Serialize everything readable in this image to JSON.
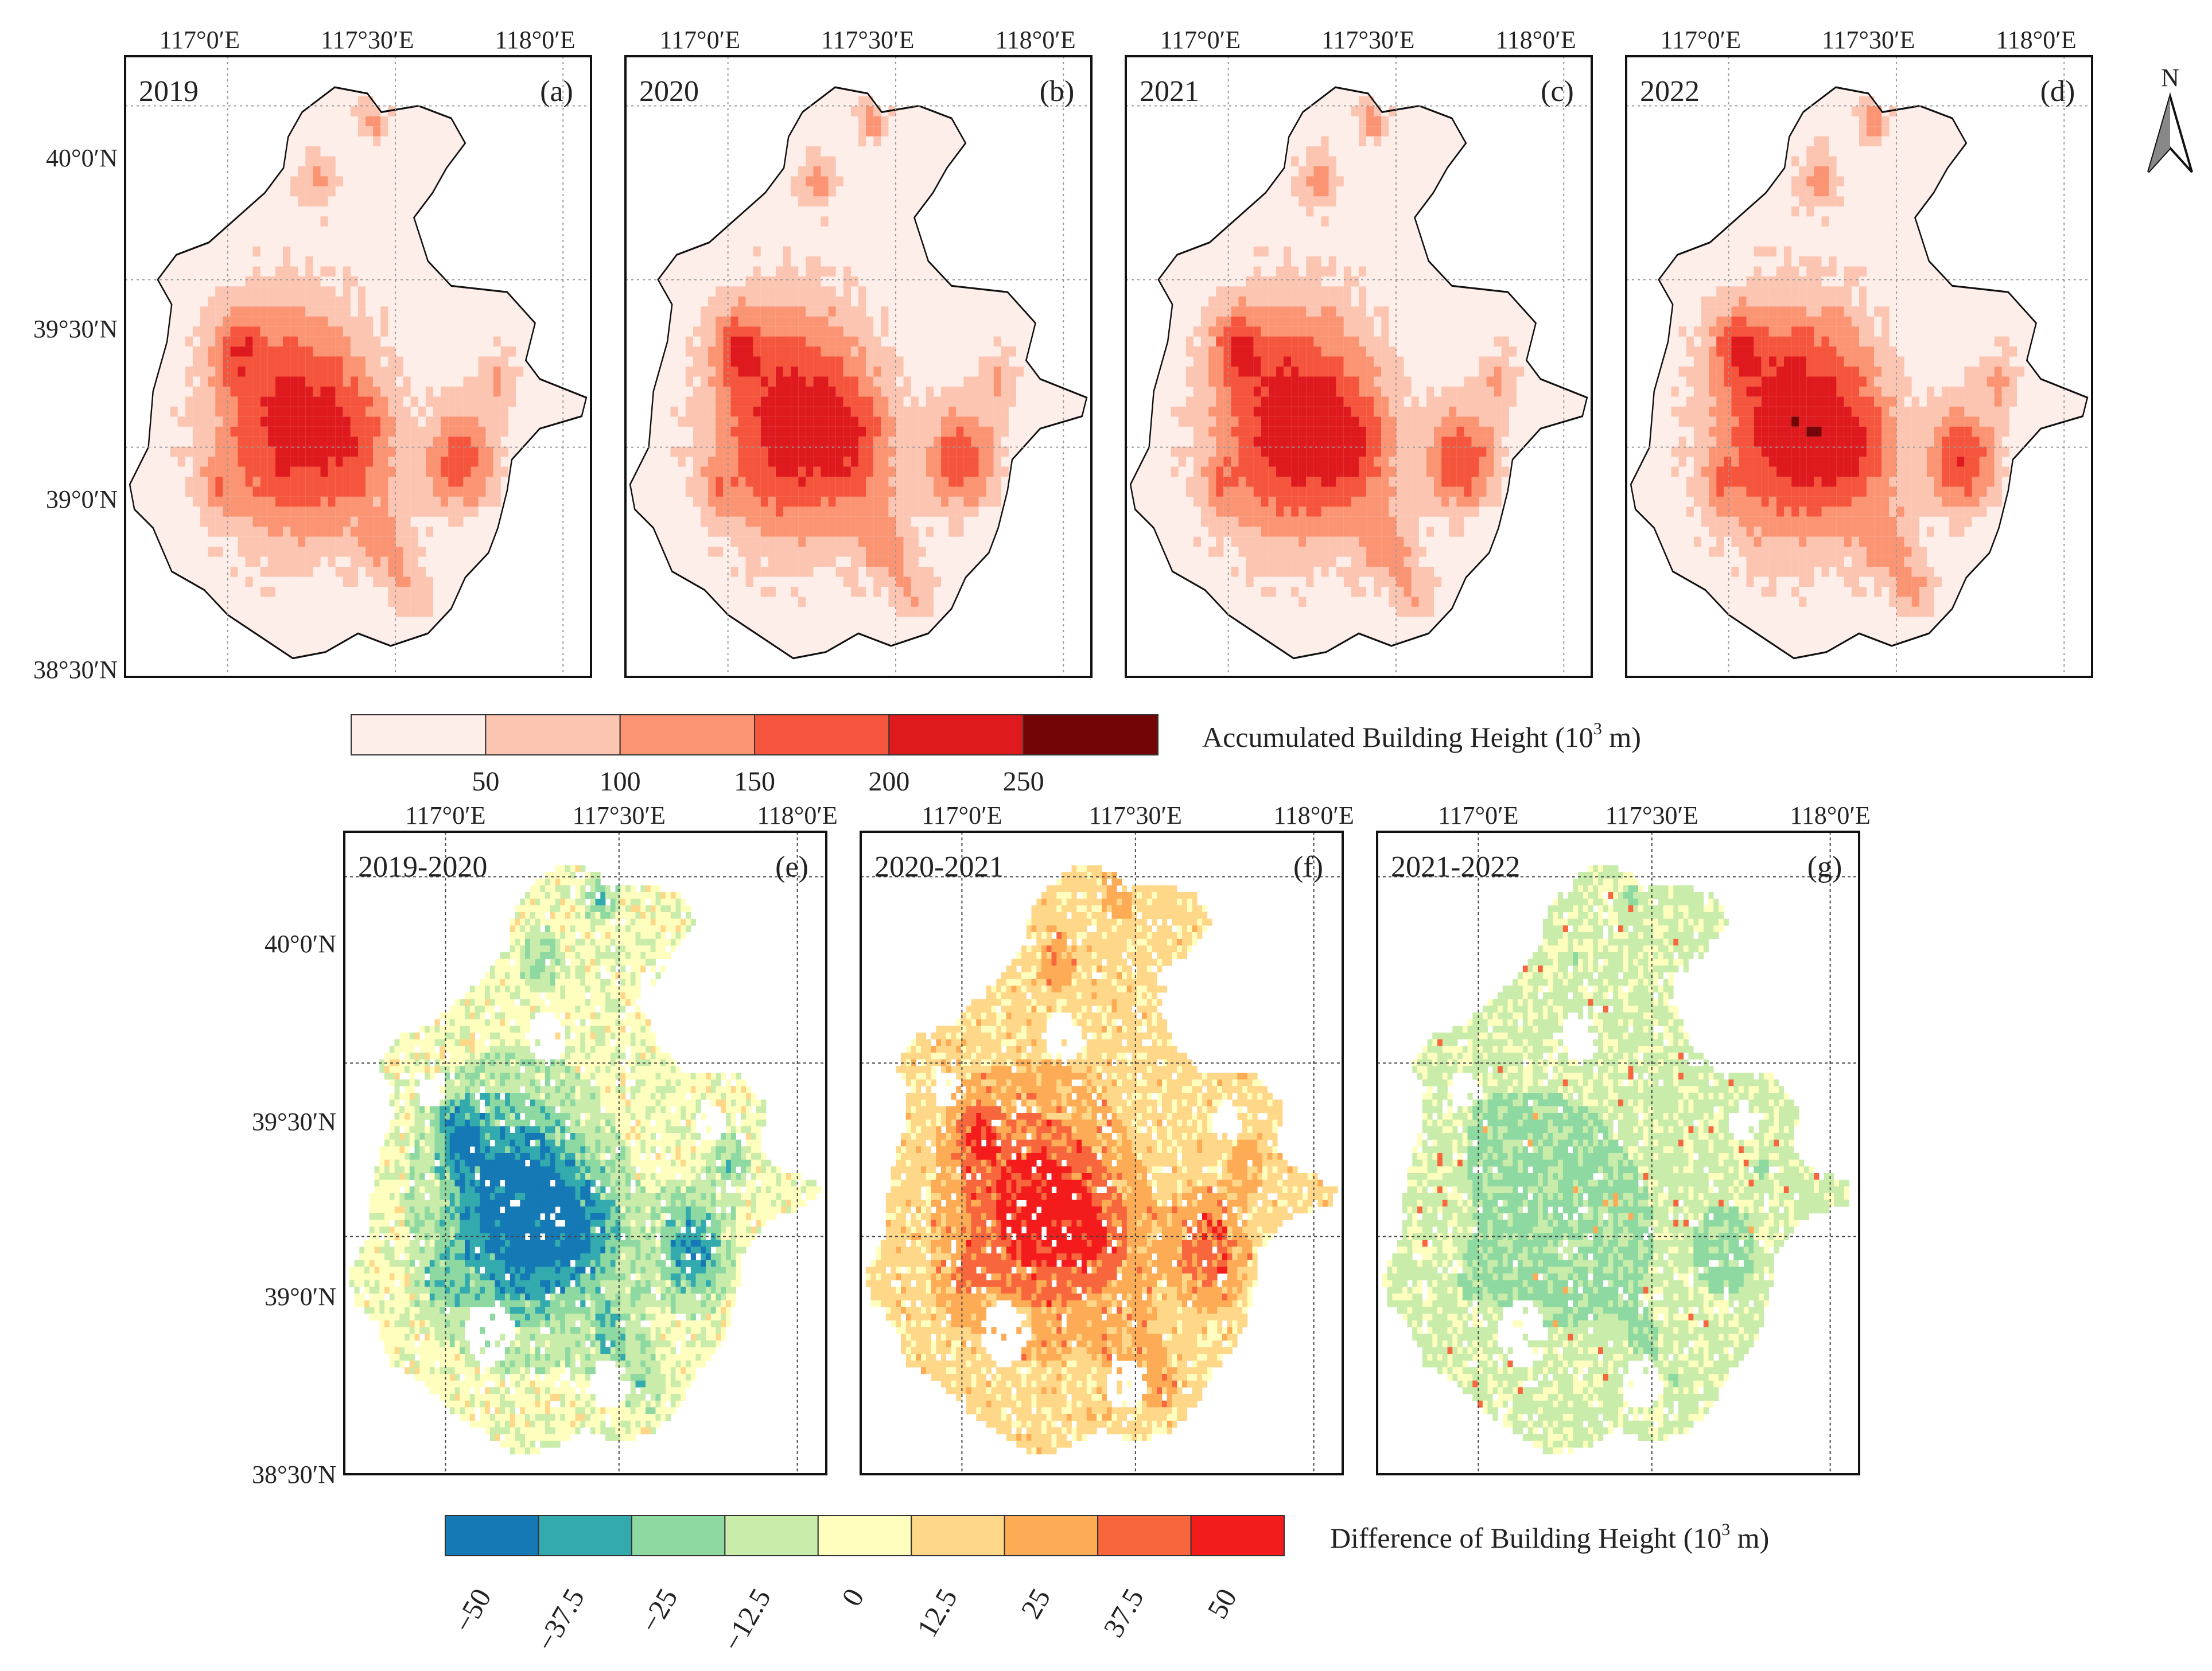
{
  "figure": {
    "top_row": {
      "lon_ticks": [
        "117°0′E",
        "117°30′E",
        "118°0′E"
      ],
      "lat_ticks": [
        "40°0′N",
        "39°30′N",
        "39°0′N",
        "38°30′N"
      ],
      "panels": [
        {
          "year": "2019",
          "letter": "(a)"
        },
        {
          "year": "2020",
          "letter": "(b)"
        },
        {
          "year": "2021",
          "letter": "(c)"
        },
        {
          "year": "2022",
          "letter": "(d)"
        }
      ]
    },
    "bottom_row": {
      "lon_ticks": [
        "117°0′E",
        "117°30′E",
        "118°0′E"
      ],
      "lat_ticks": [
        "40°0′N",
        "39°30′N",
        "39°0′N",
        "38°30′N"
      ],
      "panels": [
        {
          "period": "2019-2020",
          "letter": "(e)",
          "trend": "decrease"
        },
        {
          "period": "2020-2021",
          "letter": "(f)",
          "trend": "increase"
        },
        {
          "period": "2021-2022",
          "letter": "(g)",
          "trend": "slight-decrease"
        }
      ]
    },
    "north_arrow": {
      "label": "N"
    },
    "legend_accumulated": {
      "title_prefix": "Accumulated Building Height (10",
      "title_sup": "3",
      "title_suffix": " m)",
      "ticks": [
        "50",
        "100",
        "150",
        "200",
        "250"
      ],
      "colors": [
        "#fdeee9",
        "#fcc5b1",
        "#fb9473",
        "#f6553d",
        "#df1a1e",
        "#730507"
      ]
    },
    "legend_difference": {
      "title_prefix": "Difference of Building Height (10",
      "title_sup": "3",
      "title_suffix": " m)",
      "ticks": [
        "−50",
        "−37.5",
        "−25",
        "−12.5",
        "0",
        "12.5",
        "25",
        "37.5",
        "50"
      ],
      "colors": [
        "#1479b5",
        "#32aaae",
        "#8ed9a1",
        "#c9ecab",
        "#feffbe",
        "#fed788",
        "#fdab55",
        "#f8663d",
        "#f31b1b"
      ]
    }
  }
}
